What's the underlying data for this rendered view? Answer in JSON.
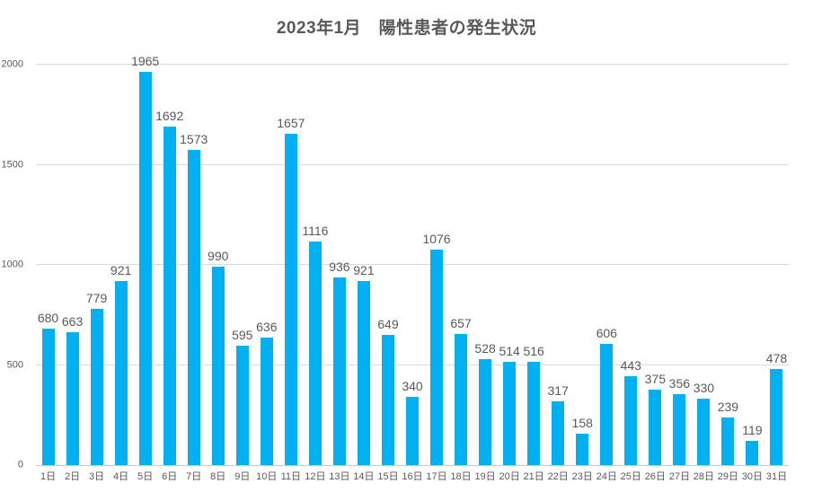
{
  "chart": {
    "title": "2023年1月　陽性患者の発生状況",
    "bar_color": "#00B0F0",
    "gridline_color": "#D9D9D9",
    "axis_line_color": "#C9C9C9",
    "text_color": "#595959",
    "y_ticks": [
      0,
      500,
      1000,
      1500,
      2000
    ]
  },
  "chart_data": {
    "type": "bar",
    "title": "2023年1月　陽性患者の発生状況",
    "categories": [
      "1日",
      "2日",
      "3日",
      "4日",
      "5日",
      "6日",
      "7日",
      "8日",
      "9日",
      "10日",
      "11日",
      "12日",
      "13日",
      "14日",
      "15日",
      "16日",
      "17日",
      "18日",
      "19日",
      "20日",
      "21日",
      "22日",
      "23日",
      "24日",
      "25日",
      "26日",
      "27日",
      "28日",
      "29日",
      "30日",
      "31日"
    ],
    "values": [
      680,
      663,
      779,
      921,
      1965,
      1692,
      1573,
      990,
      595,
      636,
      1657,
      1116,
      936,
      921,
      649,
      340,
      1076,
      657,
      528,
      514,
      516,
      317,
      158,
      606,
      443,
      375,
      356,
      330,
      239,
      119,
      478
    ],
    "xlabel": "",
    "ylabel": "",
    "ylim": [
      0,
      2000
    ],
    "grid": true,
    "legend": false,
    "data_labels": true
  }
}
